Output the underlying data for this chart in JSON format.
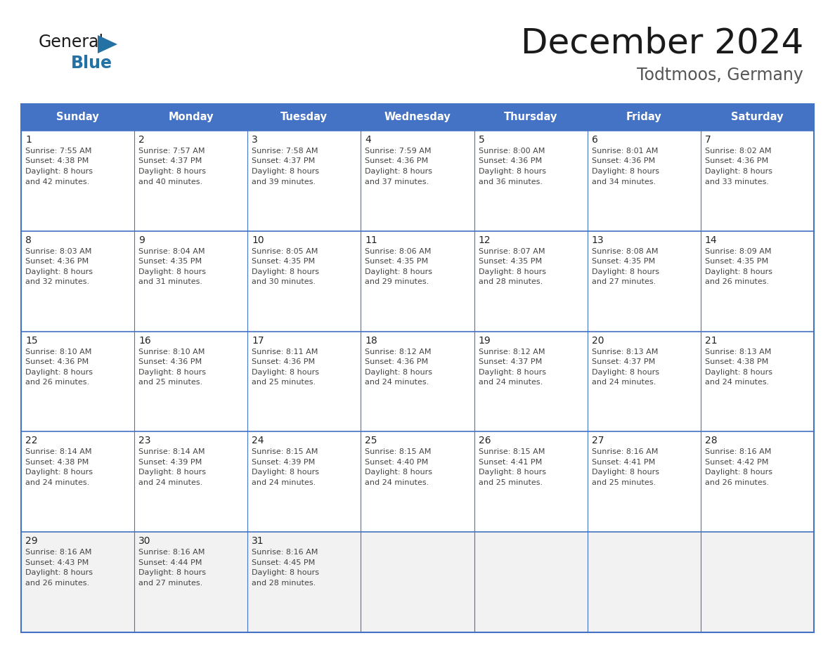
{
  "title": "December 2024",
  "subtitle": "Todtmoos, Germany",
  "header_color": "#4472C4",
  "header_text_color": "#FFFFFF",
  "day_names": [
    "Sunday",
    "Monday",
    "Tuesday",
    "Wednesday",
    "Thursday",
    "Friday",
    "Saturday"
  ],
  "background_color": "#FFFFFF",
  "cell_border_color": "#4472C4",
  "date_color": "#222222",
  "text_color": "#444444",
  "logo_general_color": "#1a1a1a",
  "logo_blue_color": "#2471A3",
  "title_color": "#1a1a1a",
  "subtitle_color": "#555555",
  "last_row_bg": "#f0f0f0",
  "calendar": [
    [
      {
        "day": 1,
        "sunrise": "7:55 AM",
        "sunset": "4:38 PM",
        "daylight_h": "8 hours",
        "daylight_m": "42 minutes"
      },
      {
        "day": 2,
        "sunrise": "7:57 AM",
        "sunset": "4:37 PM",
        "daylight_h": "8 hours",
        "daylight_m": "40 minutes"
      },
      {
        "day": 3,
        "sunrise": "7:58 AM",
        "sunset": "4:37 PM",
        "daylight_h": "8 hours",
        "daylight_m": "39 minutes"
      },
      {
        "day": 4,
        "sunrise": "7:59 AM",
        "sunset": "4:36 PM",
        "daylight_h": "8 hours",
        "daylight_m": "37 minutes"
      },
      {
        "day": 5,
        "sunrise": "8:00 AM",
        "sunset": "4:36 PM",
        "daylight_h": "8 hours",
        "daylight_m": "36 minutes"
      },
      {
        "day": 6,
        "sunrise": "8:01 AM",
        "sunset": "4:36 PM",
        "daylight_h": "8 hours",
        "daylight_m": "34 minutes"
      },
      {
        "day": 7,
        "sunrise": "8:02 AM",
        "sunset": "4:36 PM",
        "daylight_h": "8 hours",
        "daylight_m": "33 minutes"
      }
    ],
    [
      {
        "day": 8,
        "sunrise": "8:03 AM",
        "sunset": "4:36 PM",
        "daylight_h": "8 hours",
        "daylight_m": "32 minutes"
      },
      {
        "day": 9,
        "sunrise": "8:04 AM",
        "sunset": "4:35 PM",
        "daylight_h": "8 hours",
        "daylight_m": "31 minutes"
      },
      {
        "day": 10,
        "sunrise": "8:05 AM",
        "sunset": "4:35 PM",
        "daylight_h": "8 hours",
        "daylight_m": "30 minutes"
      },
      {
        "day": 11,
        "sunrise": "8:06 AM",
        "sunset": "4:35 PM",
        "daylight_h": "8 hours",
        "daylight_m": "29 minutes"
      },
      {
        "day": 12,
        "sunrise": "8:07 AM",
        "sunset": "4:35 PM",
        "daylight_h": "8 hours",
        "daylight_m": "28 minutes"
      },
      {
        "day": 13,
        "sunrise": "8:08 AM",
        "sunset": "4:35 PM",
        "daylight_h": "8 hours",
        "daylight_m": "27 minutes"
      },
      {
        "day": 14,
        "sunrise": "8:09 AM",
        "sunset": "4:35 PM",
        "daylight_h": "8 hours",
        "daylight_m": "26 minutes"
      }
    ],
    [
      {
        "day": 15,
        "sunrise": "8:10 AM",
        "sunset": "4:36 PM",
        "daylight_h": "8 hours",
        "daylight_m": "26 minutes"
      },
      {
        "day": 16,
        "sunrise": "8:10 AM",
        "sunset": "4:36 PM",
        "daylight_h": "8 hours",
        "daylight_m": "25 minutes"
      },
      {
        "day": 17,
        "sunrise": "8:11 AM",
        "sunset": "4:36 PM",
        "daylight_h": "8 hours",
        "daylight_m": "25 minutes"
      },
      {
        "day": 18,
        "sunrise": "8:12 AM",
        "sunset": "4:36 PM",
        "daylight_h": "8 hours",
        "daylight_m": "24 minutes"
      },
      {
        "day": 19,
        "sunrise": "8:12 AM",
        "sunset": "4:37 PM",
        "daylight_h": "8 hours",
        "daylight_m": "24 minutes"
      },
      {
        "day": 20,
        "sunrise": "8:13 AM",
        "sunset": "4:37 PM",
        "daylight_h": "8 hours",
        "daylight_m": "24 minutes"
      },
      {
        "day": 21,
        "sunrise": "8:13 AM",
        "sunset": "4:38 PM",
        "daylight_h": "8 hours",
        "daylight_m": "24 minutes"
      }
    ],
    [
      {
        "day": 22,
        "sunrise": "8:14 AM",
        "sunset": "4:38 PM",
        "daylight_h": "8 hours",
        "daylight_m": "24 minutes"
      },
      {
        "day": 23,
        "sunrise": "8:14 AM",
        "sunset": "4:39 PM",
        "daylight_h": "8 hours",
        "daylight_m": "24 minutes"
      },
      {
        "day": 24,
        "sunrise": "8:15 AM",
        "sunset": "4:39 PM",
        "daylight_h": "8 hours",
        "daylight_m": "24 minutes"
      },
      {
        "day": 25,
        "sunrise": "8:15 AM",
        "sunset": "4:40 PM",
        "daylight_h": "8 hours",
        "daylight_m": "24 minutes"
      },
      {
        "day": 26,
        "sunrise": "8:15 AM",
        "sunset": "4:41 PM",
        "daylight_h": "8 hours",
        "daylight_m": "25 minutes"
      },
      {
        "day": 27,
        "sunrise": "8:16 AM",
        "sunset": "4:41 PM",
        "daylight_h": "8 hours",
        "daylight_m": "25 minutes"
      },
      {
        "day": 28,
        "sunrise": "8:16 AM",
        "sunset": "4:42 PM",
        "daylight_h": "8 hours",
        "daylight_m": "26 minutes"
      }
    ],
    [
      {
        "day": 29,
        "sunrise": "8:16 AM",
        "sunset": "4:43 PM",
        "daylight_h": "8 hours",
        "daylight_m": "26 minutes"
      },
      {
        "day": 30,
        "sunrise": "8:16 AM",
        "sunset": "4:44 PM",
        "daylight_h": "8 hours",
        "daylight_m": "27 minutes"
      },
      {
        "day": 31,
        "sunrise": "8:16 AM",
        "sunset": "4:45 PM",
        "daylight_h": "8 hours",
        "daylight_m": "28 minutes"
      },
      null,
      null,
      null,
      null
    ]
  ]
}
